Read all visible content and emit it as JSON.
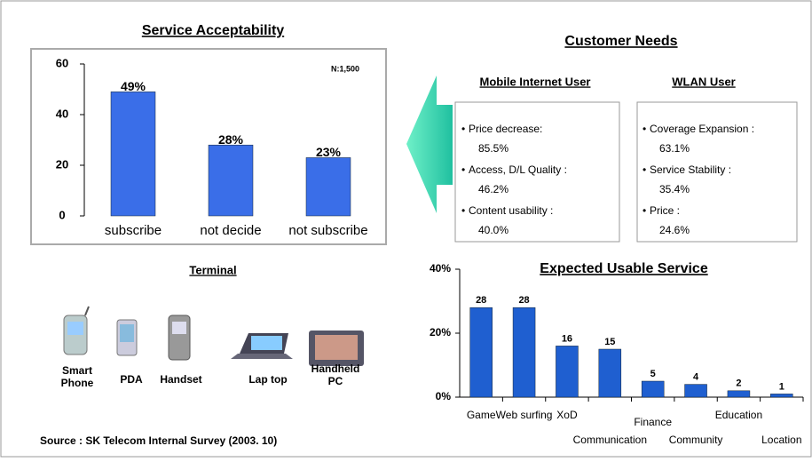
{
  "chart_data": [
    {
      "type": "bar",
      "title": "Service Acceptability",
      "annotation": "N:1,500",
      "categories": [
        "subscribe",
        "not decide",
        "not subscribe"
      ],
      "values": [
        49,
        28,
        23
      ],
      "value_labels": [
        "49%",
        "28%",
        "23%"
      ],
      "color": "#3a6ee8",
      "ylim": [
        0,
        60
      ],
      "yticks": [
        0,
        20,
        40,
        60
      ]
    },
    {
      "type": "bar",
      "title": "Expected Usable Service",
      "categories": [
        "Game",
        "Web surfing",
        "XoD",
        "Communication",
        "Finance",
        "Community",
        "Education",
        "Location"
      ],
      "values": [
        28,
        28,
        16,
        15,
        5,
        4,
        2,
        1
      ],
      "color": "#1f5fd0",
      "ylim": [
        0,
        40
      ],
      "yticks": [
        {
          "value": 0,
          "label": "0%"
        },
        {
          "value": 20,
          "label": "20%"
        },
        {
          "value": 40,
          "label": "40%"
        }
      ]
    }
  ],
  "customer_needs": {
    "title": "Customer Needs",
    "groups": [
      {
        "title": "Mobile Internet User",
        "items": [
          [
            "Price decrease:",
            "85.5%"
          ],
          [
            "Access, D/L  Quality :",
            "46.2%"
          ],
          [
            "Content usability :",
            "40.0%"
          ]
        ]
      },
      {
        "title": "WLAN User",
        "items": [
          [
            "Coverage Expansion :",
            "63.1%"
          ],
          [
            "Service Stability :",
            "35.4%"
          ],
          [
            "Price :",
            "24.6%"
          ]
        ]
      }
    ]
  },
  "terminal": {
    "title": "Terminal",
    "devices": [
      "Smart Phone",
      "PDA",
      "Handset",
      "Lap top",
      "Handheld PC"
    ]
  },
  "source": "Source : SK Telecom Internal Survey  (2003. 10)"
}
